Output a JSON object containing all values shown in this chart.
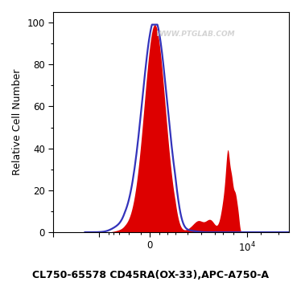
{
  "title": "CL750-65578 CD45RA(OX-33),APC-A750-A",
  "ylabel": "Relative Cell Number",
  "background_color": "#ffffff",
  "watermark": "WWW.PTGLAB.COM",
  "blue_line_color": "#3333bb",
  "red_fill_color": "#dd0000",
  "title_fontsize": 9,
  "axis_label_fontsize": 9,
  "tick_fontsize": 8.5,
  "ylim": [
    0,
    105
  ],
  "yticks": [
    0,
    20,
    40,
    60,
    80,
    100
  ]
}
